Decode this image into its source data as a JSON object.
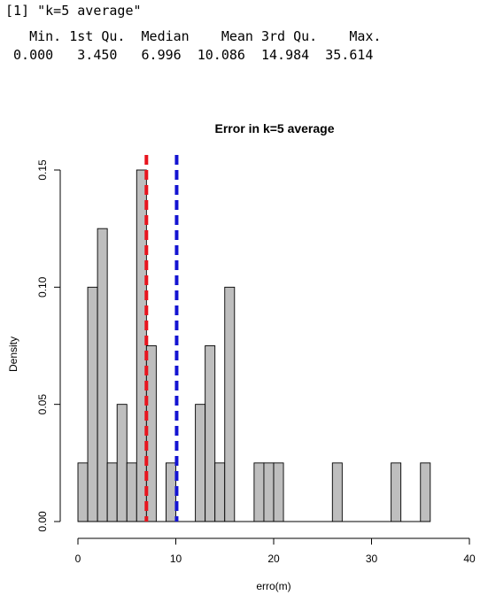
{
  "console": {
    "print_line": "[1] \"k=5 average\"",
    "summary_header": "   Min. 1st Qu.  Median    Mean 3rd Qu.    Max. ",
    "summary_values": " 0.000   3.450   6.996  10.086  14.984  35.614 "
  },
  "chart_data": {
    "type": "bar",
    "title": "Error in k=5 average",
    "xlabel": "erro(m)",
    "ylabel": "Density",
    "xlim": [
      0,
      40
    ],
    "ylim": [
      0,
      0.155
    ],
    "bin_width": 1,
    "bin_starts": [
      0,
      1,
      2,
      3,
      4,
      5,
      6,
      7,
      8,
      9,
      10,
      11,
      12,
      13,
      14,
      15,
      16,
      17,
      18,
      19,
      20,
      21,
      22,
      23,
      24,
      25,
      26,
      27,
      28,
      29,
      30,
      31,
      32,
      33,
      34,
      35
    ],
    "values": [
      0.025,
      0.1,
      0.125,
      0.025,
      0.05,
      0.025,
      0.15,
      0.075,
      0,
      0.025,
      0,
      0,
      0.05,
      0.075,
      0.025,
      0.1,
      0,
      0,
      0.025,
      0.025,
      0.025,
      0,
      0,
      0,
      0,
      0,
      0.025,
      0,
      0,
      0,
      0,
      0,
      0.025,
      0,
      0,
      0.025
    ],
    "x_ticks": [
      0,
      10,
      20,
      30,
      40
    ],
    "y_ticks": [
      0.0,
      0.05,
      0.1,
      0.15
    ],
    "y_tick_labels": [
      "0.00",
      "0.05",
      "0.10",
      "0.15"
    ],
    "reference_lines": [
      {
        "label": "Median",
        "x": 6.996,
        "color": "#e8141e"
      },
      {
        "label": "Mean",
        "x": 10.086,
        "color": "#1414d2"
      }
    ],
    "bar_fill": "#bebebe",
    "bar_stroke": "#000000",
    "grid": false
  }
}
